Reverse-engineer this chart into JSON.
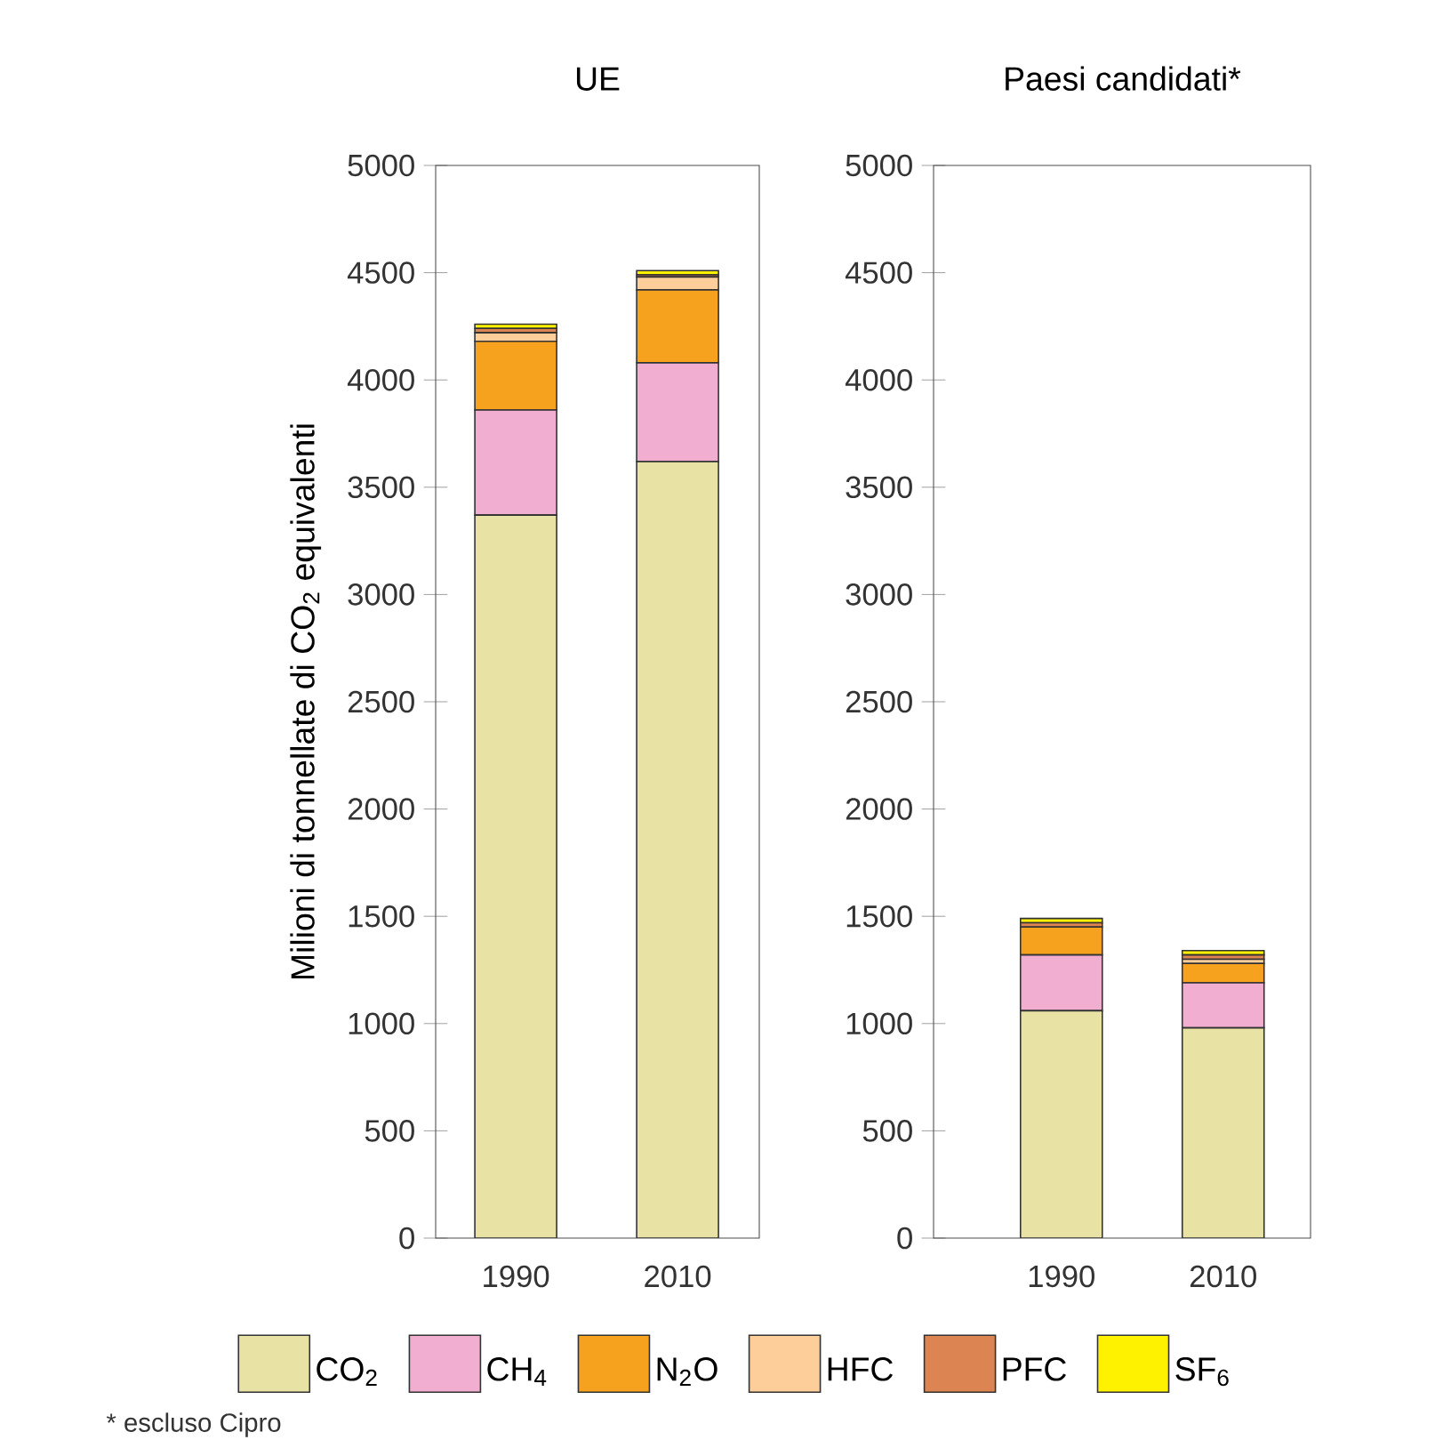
{
  "chart_data": [
    {
      "type": "bar",
      "stacked": true,
      "title": "UE",
      "ylabel": "Milioni di tonnellate di CO$_{2}$ equivalenti",
      "categories": [
        "1990",
        "2010"
      ],
      "ylim": [
        0,
        5000
      ],
      "yticks": [
        0,
        500,
        1000,
        1500,
        2000,
        2500,
        3000,
        3500,
        4000,
        4500,
        5000
      ],
      "legend": "bottom",
      "annotations": [
        "* escluso Cipro"
      ],
      "series": [
        {
          "name": "CO$_{2}$",
          "color": "#e8e3a4",
          "values": [
            3370,
            3620
          ]
        },
        {
          "name": "CH$_{4}$",
          "color": "#f2aed0",
          "values": [
            490,
            460
          ]
        },
        {
          "name": "N$_{2}$O",
          "color": "#f6a21e",
          "values": [
            320,
            340
          ]
        },
        {
          "name": "HFC",
          "color": "#fdcd9a",
          "values": [
            40,
            60
          ]
        },
        {
          "name": "PFC",
          "color": "#dd8552",
          "values": [
            20,
            10
          ]
        },
        {
          "name": "SF$_{6}$",
          "color": "#fff200",
          "values": [
            20,
            20
          ]
        }
      ]
    },
    {
      "type": "bar",
      "stacked": true,
      "title": "Paesi candidati*",
      "categories": [
        "1990",
        "2010"
      ],
      "ylim": [
        0,
        5000
      ],
      "yticks": [
        0,
        500,
        1000,
        1500,
        2000,
        2500,
        3000,
        3500,
        4000,
        4500,
        5000
      ],
      "series": [
        {
          "color": "#e8e3a4",
          "values": [
            1060,
            980
          ]
        },
        {
          "color": "#f2aed0",
          "values": [
            260,
            210
          ]
        },
        {
          "color": "#f6a21e",
          "values": [
            130,
            90
          ]
        },
        {
          "color": "#fdcd9a",
          "values": [
            null,
            20
          ]
        },
        {
          "color": "#dd8552",
          "values": [
            20,
            20
          ]
        },
        {
          "color": "#fff200",
          "values": [
            20,
            20
          ]
        }
      ]
    }
  ]
}
